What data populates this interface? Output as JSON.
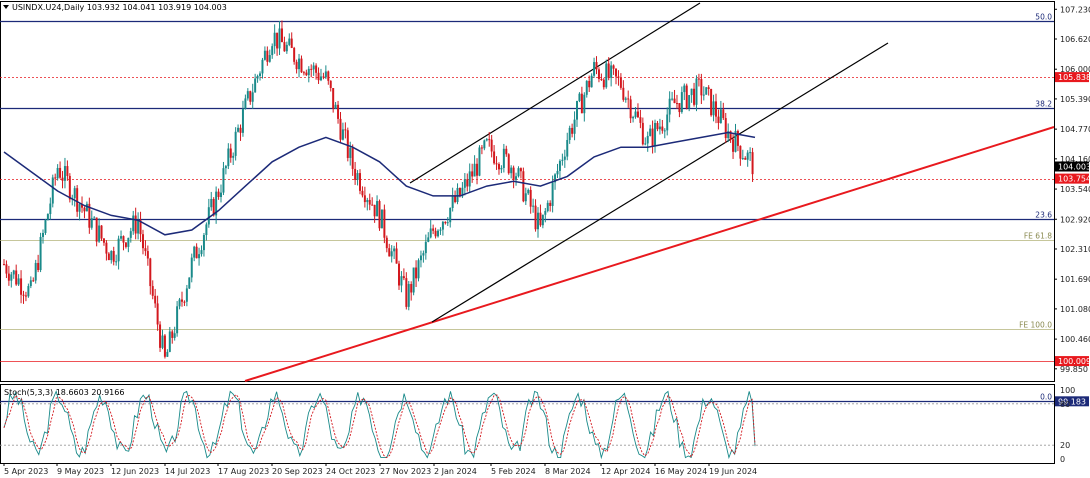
{
  "header": {
    "symbol_text": "USINDX.U24,Daily  103.932 104.041 103.919 104.003",
    "stoch_text": "Stoch(5,3,3) 18.6603 20.9166"
  },
  "y_axis_ticks": [
    "107.230",
    "106.620",
    "106.000",
    "105.390",
    "104.770",
    "104.160",
    "103.540",
    "102.920",
    "102.310",
    "101.690",
    "101.080",
    "100.460",
    "99.850"
  ],
  "stoch_ticks": [
    "100",
    "80",
    "20",
    "0"
  ],
  "x_axis_ticks": [
    "5 Apr 2023",
    "9 May 2023",
    "12 Jun 2023",
    "14 Jul 2023",
    "17 Aug 2023",
    "20 Sep 2023",
    "24 Oct 2023",
    "27 Nov 2023",
    "2 Jan 2024",
    "5 Feb 2024",
    "8 Mar 2024",
    "12 Apr 2024",
    "16 May 2024",
    "19 Jun 2024"
  ],
  "price_tags": [
    {
      "text": "105.838",
      "value": 105.838,
      "color": "#e8191e"
    },
    {
      "text": "104.003",
      "value": 104.003,
      "color": "#000000"
    },
    {
      "text": "103.754",
      "value": 103.754,
      "color": "#e8191e"
    },
    {
      "text": "100.009",
      "value": 100.009,
      "color": "#e8191e"
    },
    {
      "text": "99.183",
      "value": 99.183,
      "color": "#1c2a78"
    }
  ],
  "levels": [
    {
      "label": "50.0",
      "value": 106.98,
      "color": "#1c2a78",
      "style": "solid"
    },
    {
      "label": "",
      "value": 105.838,
      "color": "#e8191e",
      "style": "dotted"
    },
    {
      "label": "38.2",
      "value": 105.21,
      "color": "#1c2a78",
      "style": "solid"
    },
    {
      "label": "",
      "value": 103.754,
      "color": "#e8191e",
      "style": "dotted"
    },
    {
      "label": "23.6",
      "value": 102.93,
      "color": "#1c2a78",
      "style": "solid"
    },
    {
      "label": "FE 61.8",
      "value": 102.49,
      "color": "#b3b37a",
      "style": "solid"
    },
    {
      "label": "FE 100.0",
      "value": 100.66,
      "color": "#b3b37a",
      "style": "solid"
    },
    {
      "label": "",
      "value": 100.009,
      "color": "#e8191e",
      "style": "solid"
    },
    {
      "label": "0.0",
      "value": 99.183,
      "color": "#1c2a78",
      "style": "solid"
    }
  ],
  "colors": {
    "candle_up": "#1a8a8a",
    "candle_down": "#d3181e",
    "ma_line": "#1c2a78",
    "trend_black": "#000000",
    "trend_red": "#e8191e",
    "stoch_main": "#1a8a8a",
    "stoch_signal": "#d3181e"
  },
  "chart_data": {
    "type": "line",
    "symbol": "USINDX.U24",
    "timeframe": "Daily",
    "ohlc_last": {
      "open": 103.932,
      "high": 104.041,
      "low": 103.919,
      "close": 104.003
    },
    "ylim": [
      99.6,
      107.4
    ],
    "x": [
      "5 Apr 2023",
      "20 Apr 2023",
      "9 May 2023",
      "25 May 2023",
      "12 Jun 2023",
      "28 Jun 2023",
      "14 Jul 2023",
      "1 Aug 2023",
      "17 Aug 2023",
      "5 Sep 2023",
      "20 Sep 2023",
      "6 Oct 2023",
      "24 Oct 2023",
      "9 Nov 2023",
      "27 Nov 2023",
      "14 Dec 2023",
      "2 Jan 2024",
      "19 Jan 2024",
      "5 Feb 2024",
      "21 Feb 2024",
      "8 Mar 2024",
      "26 Mar 2024",
      "12 Apr 2024",
      "30 Apr 2024",
      "16 May 2024",
      "3 Jun 2024",
      "19 Jun 2024",
      "3 Jul 2024",
      "11 Jul 2024"
    ],
    "series": [
      {
        "name": "",
        "values": [
          102.0,
          101.4,
          104.0,
          103.1,
          102.2,
          102.9,
          100.0,
          102.0,
          103.5,
          105.2,
          106.7,
          106.2,
          105.8,
          104.0,
          103.0,
          101.3,
          102.7,
          103.4,
          104.4,
          104.0,
          102.7,
          104.6,
          106.0,
          105.7,
          104.5,
          105.3,
          105.6,
          104.7,
          104.0
        ]
      },
      {
        "name": "",
        "values": [
          104.3,
          103.9,
          103.5,
          103.2,
          103.0,
          102.9,
          102.6,
          102.7,
          103.1,
          103.6,
          104.1,
          104.4,
          104.6,
          104.4,
          104.1,
          103.6,
          103.4,
          103.4,
          103.6,
          103.7,
          103.6,
          103.8,
          104.2,
          104.4,
          104.4,
          104.5,
          104.6,
          104.7,
          104.6
        ]
      }
    ],
    "stochastic": {
      "k": 18.6603,
      "d": 20.9166,
      "levels": [
        80,
        20
      ]
    }
  }
}
